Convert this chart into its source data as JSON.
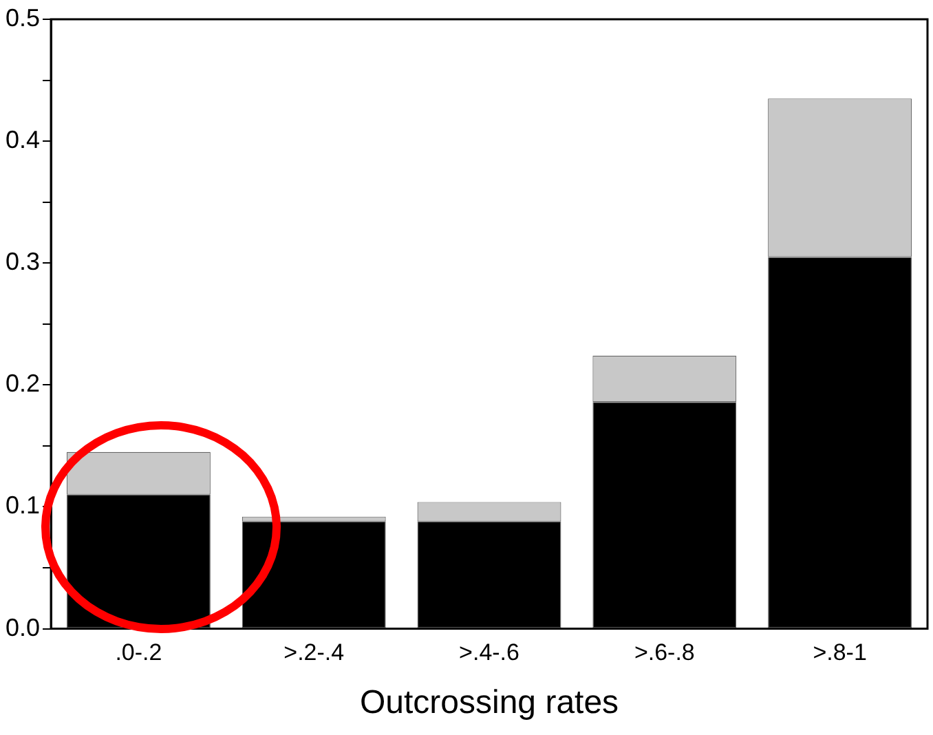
{
  "chart_data": {
    "type": "bar",
    "xlabel": "Outcrossing rates",
    "categories": [
      ".0-.2",
      ">.2-.4",
      ">.4-.6",
      ">.6-.8",
      ">.8-1"
    ],
    "stacked": true,
    "series": [
      {
        "color": "#000000",
        "values": [
          0.11,
          0.088,
          0.088,
          0.186,
          0.305
        ]
      },
      {
        "color": "#c8c8c8",
        "values": [
          0.035,
          0.004,
          0.016,
          0.038,
          0.13
        ]
      }
    ],
    "ylim": [
      0,
      0.5
    ],
    "yticks": [
      {
        "value": 0,
        "label": "0.0"
      },
      {
        "value": 0.05,
        "label": null
      },
      0.1,
      {
        "value": 0.15,
        "label": null
      },
      0.2,
      {
        "value": 0.25,
        "label": null
      },
      0.3,
      {
        "value": 0.35,
        "label": null
      },
      0.4,
      {
        "value": 0.45,
        "label": null
      },
      0.5
    ],
    "grid": false,
    "legend": false
  }
}
